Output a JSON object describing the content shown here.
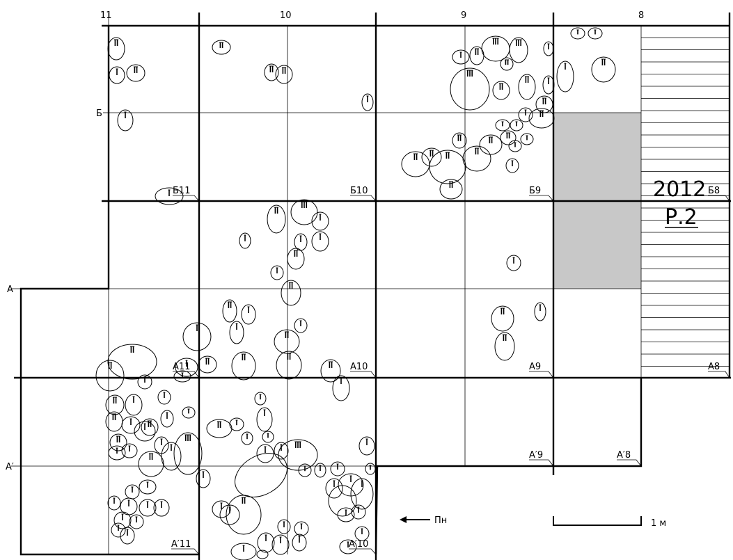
{
  "column_labels": [
    "11",
    "10",
    "9",
    "8"
  ],
  "row_labels": [
    "Б",
    "А",
    "А′"
  ],
  "square_labels": {
    "b11": "Б11",
    "b10": "Б10",
    "b9": "Б9",
    "b8": "Б8",
    "a11": "А11",
    "a10": "А10",
    "a9": "А9",
    "a8": "А8",
    "ap11": "А′11",
    "ap10": "А′10",
    "ap9": "А′9",
    "ap8": "А′8"
  },
  "excavation": {
    "year": "2012",
    "code": "Р.2"
  },
  "north_label": "Пн",
  "scale_label": "1 м",
  "colors": {
    "shaded_square": "#c8c8c8",
    "lines": "#000000"
  }
}
